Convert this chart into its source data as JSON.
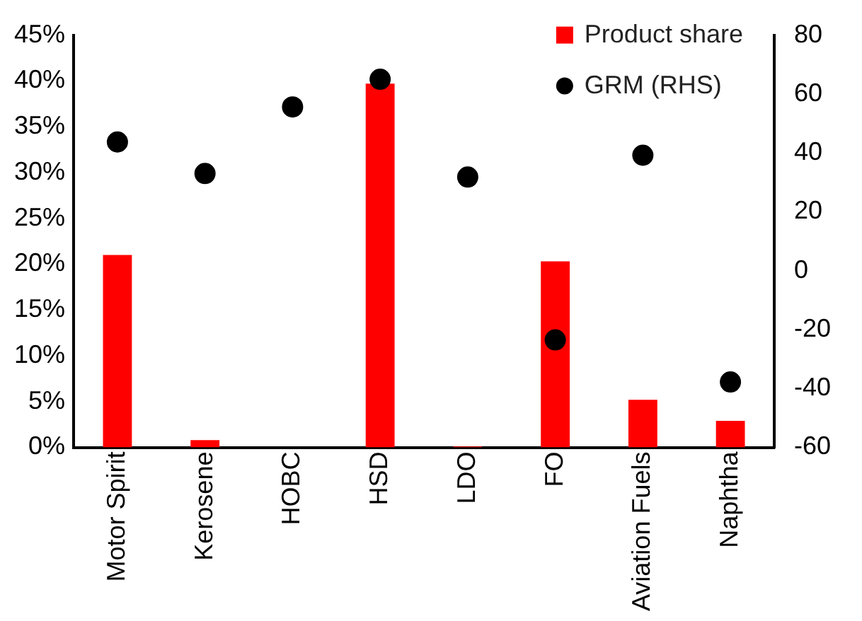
{
  "chart_data": {
    "type": "bar",
    "categories": [
      "Motor Spirit",
      "Kerosene",
      "HOBC",
      "HSD",
      "LDO",
      "FO",
      "Aviation Fuels",
      "Naphtha"
    ],
    "series": [
      {
        "name": "Product share",
        "color": "#ff0000",
        "values": [
          21,
          0.8,
          0,
          39.7,
          0.1,
          20.3,
          5.2,
          2.9
        ]
      },
      {
        "name": "GRM (RHS)",
        "type": "scatter",
        "axis": "y2",
        "color": "#000000",
        "values": [
          43.7,
          33,
          55.6,
          65,
          31.8,
          -23.5,
          39.2,
          -37.8
        ]
      }
    ],
    "ylim": [
      0,
      45
    ],
    "yticks": [
      {
        "value": 0,
        "label": "0%"
      },
      {
        "value": 5,
        "label": "5%"
      },
      {
        "value": 10,
        "label": "10%"
      },
      {
        "value": 15,
        "label": "15%"
      },
      {
        "value": 20,
        "label": "20%"
      },
      {
        "value": 25,
        "label": "25%"
      },
      {
        "value": 30,
        "label": "30%"
      },
      {
        "value": 35,
        "label": "35%"
      },
      {
        "value": 40,
        "label": "40%"
      },
      {
        "value": 45,
        "label": "45%"
      }
    ],
    "y2lim": [
      -60,
      80
    ],
    "y2ticks": [
      -60,
      -40,
      -20,
      0,
      20,
      40,
      60,
      80
    ],
    "grid": false,
    "legend": "top right",
    "marker": "circle"
  }
}
